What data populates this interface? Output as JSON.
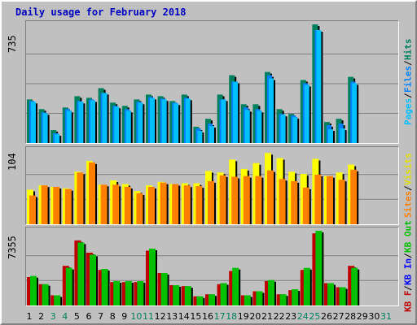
{
  "title": "Daily usage for February 2018",
  "colors": {
    "hits": "#00805c",
    "files": "#0080ff",
    "pages": "#00c0ff",
    "visits": "#ffff00",
    "sites": "#ff8000",
    "kb_f": "#c00000",
    "kb_in": "#0000ff",
    "kb_out": "#00c000",
    "weekend_label": "#00805c"
  },
  "chart_data": [
    {
      "type": "bar",
      "title": "Daily usage for February 2018",
      "x": [
        "1",
        "2",
        "3",
        "4",
        "5",
        "6",
        "7",
        "8",
        "9",
        "10",
        "11",
        "12",
        "13",
        "14",
        "15",
        "16",
        "17",
        "18",
        "19",
        "20",
        "21",
        "22",
        "23",
        "24",
        "25",
        "26",
        "27",
        "28",
        "29",
        "30",
        "31"
      ],
      "weekend_days": [
        "3",
        "4",
        "10",
        "11",
        "17",
        "18",
        "24",
        "25",
        "31"
      ],
      "ymax_label": "735",
      "ylim": [
        0,
        735
      ],
      "legend": [
        "Pages",
        "Files",
        "Hits"
      ],
      "series": [
        {
          "name": "Hits",
          "values": [
            270,
            210,
            80,
            220,
            290,
            280,
            340,
            250,
            230,
            270,
            300,
            290,
            260,
            300,
            100,
            150,
            300,
            420,
            240,
            240,
            440,
            210,
            180,
            390,
            735,
            130,
            150,
            410,
            0,
            0,
            0
          ]
        },
        {
          "name": "Files",
          "values": [
            260,
            190,
            60,
            210,
            260,
            270,
            310,
            230,
            210,
            255,
            285,
            275,
            250,
            280,
            90,
            120,
            270,
            380,
            220,
            210,
            420,
            180,
            170,
            370,
            700,
            110,
            120,
            380,
            0,
            0,
            0
          ]
        },
        {
          "name": "Pages",
          "values": [
            255,
            185,
            55,
            200,
            255,
            265,
            310,
            225,
            200,
            250,
            280,
            270,
            245,
            275,
            75,
            105,
            270,
            380,
            205,
            200,
            400,
            175,
            160,
            360,
            700,
            85,
            90,
            370,
            0,
            0,
            0
          ]
        }
      ]
    },
    {
      "type": "bar",
      "x": [
        "1",
        "2",
        "3",
        "4",
        "5",
        "6",
        "7",
        "8",
        "9",
        "10",
        "11",
        "12",
        "13",
        "14",
        "15",
        "16",
        "17",
        "18",
        "19",
        "20",
        "21",
        "22",
        "23",
        "24",
        "25",
        "26",
        "27",
        "28",
        "29",
        "30",
        "31"
      ],
      "ymax_label": "104",
      "ylim": [
        0,
        104
      ],
      "legend": [
        "Sites",
        "Visits"
      ],
      "series": [
        {
          "name": "Visits",
          "values": [
            48,
            54,
            52,
            50,
            73,
            88,
            55,
            61,
            56,
            46,
            54,
            59,
            56,
            57,
            57,
            74,
            72,
            90,
            77,
            85,
            99,
            92,
            73,
            70,
            91,
            67,
            72,
            83,
            0,
            0,
            0
          ]
        },
        {
          "name": "Sites",
          "values": [
            40,
            54,
            52,
            49,
            72,
            86,
            55,
            55,
            52,
            43,
            52,
            58,
            56,
            54,
            53,
            60,
            68,
            66,
            67,
            67,
            75,
            63,
            60,
            51,
            69,
            67,
            62,
            76,
            0,
            0,
            0
          ]
        }
      ]
    },
    {
      "type": "bar",
      "x": [
        "1",
        "2",
        "3",
        "4",
        "5",
        "6",
        "7",
        "8",
        "9",
        "10",
        "11",
        "12",
        "13",
        "14",
        "15",
        "16",
        "17",
        "18",
        "19",
        "20",
        "21",
        "22",
        "23",
        "24",
        "25",
        "26",
        "27",
        "28",
        "29",
        "30",
        "31"
      ],
      "ymax_label": "7355",
      "ylim": [
        0,
        7355
      ],
      "legend": [
        "KB F",
        "KB In",
        "KB Out"
      ],
      "series": [
        {
          "name": "KB F",
          "values": [
            2800,
            2100,
            1000,
            3900,
            6400,
            5200,
            3500,
            2300,
            2300,
            2300,
            5400,
            3200,
            2000,
            1900,
            900,
            1100,
            2100,
            3400,
            1000,
            1400,
            2400,
            1100,
            1500,
            3500,
            7100,
            2200,
            1800,
            3900,
            0,
            0,
            0
          ]
        },
        {
          "name": "KB In",
          "values": [
            0,
            0,
            0,
            0,
            0,
            0,
            0,
            0,
            0,
            0,
            0,
            0,
            0,
            0,
            0,
            0,
            0,
            0,
            0,
            0,
            0,
            0,
            0,
            0,
            0,
            0,
            0,
            0,
            0,
            0,
            0
          ]
        },
        {
          "name": "KB Out",
          "values": [
            2900,
            2100,
            1000,
            3700,
            6200,
            5000,
            3600,
            2400,
            2400,
            2400,
            5600,
            3200,
            2000,
            1900,
            900,
            1100,
            2200,
            3700,
            1000,
            1400,
            2500,
            1100,
            1600,
            3700,
            7355,
            2200,
            1800,
            3700,
            0,
            0,
            0
          ]
        }
      ]
    }
  ]
}
